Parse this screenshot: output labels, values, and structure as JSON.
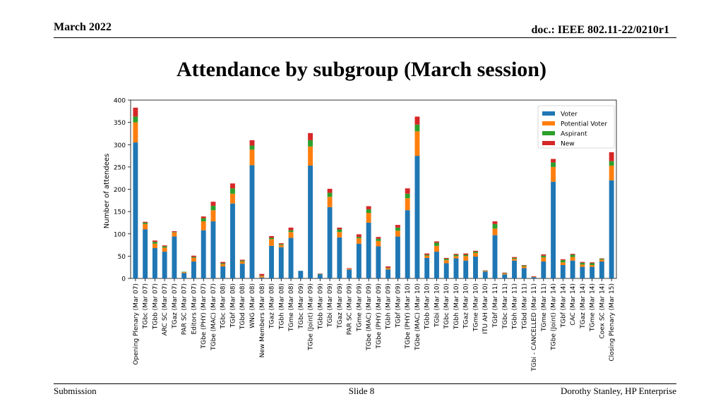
{
  "header": {
    "date": "March 2022",
    "doc": "doc.: IEEE 802.11-22/0210r1"
  },
  "title": "Attendance by subgroup (March session)",
  "footer": {
    "left": "Submission",
    "center": "Slide 8",
    "right": "Dorothy Stanley, HP Enterprise"
  },
  "colors": {
    "Voter": "#1f77b4",
    "Potential Voter": "#ff7f0e",
    "Aspirant": "#2ca02c",
    "New": "#d62728"
  },
  "chart_data": {
    "type": "bar",
    "stacked": true,
    "title": "",
    "xlabel": "",
    "ylabel": "Number of attendees",
    "ylim": [
      0,
      400
    ],
    "yticks": [
      0,
      50,
      100,
      150,
      200,
      250,
      300,
      350,
      400
    ],
    "legend_position": "top-right",
    "categories": [
      "Opening Plenary (Mar 07)",
      "TGbc (Mar 07)",
      "TGbb (Mar 07)",
      "ARC SC (Mar 07)",
      "TGaz (Mar 07)",
      "PAR SC (Mar 07)",
      "Editors (Mar 07)",
      "TGbe (PHY) (Mar 07)",
      "TGbe (MAC) (Mar 07)",
      "TGbc (Mar 08)",
      "TGbf (Mar 08)",
      "TGbd (Mar 08)",
      "WNG (Mar 08)",
      "New Members (Mar 08)",
      "TGaz (Mar 08)",
      "TGbh (Mar 08)",
      "TGme (Mar 08)",
      "TGbc (Mar 09)",
      "TGbe (Joint) (Mar 09)",
      "TGbb (Mar 09)",
      "TGbi (Mar 09)",
      "TGaz (Mar 09)",
      "PAR SC (Mar 09)",
      "TGme (Mar 09)",
      "TGbe (MAC) (Mar 09)",
      "TGbe (PHY) (Mar 09)",
      "TGbh (Mar 09)",
      "TGbf (Mar 09)",
      "TGbe (PHY) (Mar 10)",
      "TGbe (MAC) (Mar 10)",
      "TGbb (Mar 10)",
      "TGbi (Mar 10)",
      "TGbc (Mar 10)",
      "TGbh (Mar 10)",
      "TGaz (Mar 10)",
      "TGme (Mar 10)",
      "ITU AH (Mar 10)",
      "TGbf (Mar 11)",
      "TGbc (Mar 11)",
      "TGbh (Mar 11)",
      "TGbd (Mar 11)",
      "TGbi - CANCELLED (Mar 11)",
      "TGme (Mar 11)",
      "TGbe (Joint) (Mar 14)",
      "TGbf (Mar 14)",
      "CAC (Mar 14)",
      "TGaz (Mar 14)",
      "TGme (Mar 14)",
      "Coex SC (Mar 14)",
      "Closing Plenary (Mar 15)"
    ],
    "series": [
      {
        "name": "Voter",
        "values": [
          305,
          110,
          68,
          60,
          94,
          12,
          38,
          108,
          128,
          27,
          168,
          33,
          254,
          2,
          73,
          70,
          91,
          17,
          253,
          9,
          160,
          92,
          20,
          78,
          125,
          72,
          20,
          94,
          153,
          275,
          46,
          60,
          34,
          45,
          40,
          49,
          15,
          97,
          9,
          40,
          23,
          3,
          38,
          217,
          30,
          40,
          26,
          26,
          38,
          220
        ]
      },
      {
        "name": "Potential Voter",
        "values": [
          45,
          12,
          10,
          9,
          9,
          2,
          8,
          20,
          25,
          5,
          22,
          5,
          35,
          3,
          15,
          5,
          13,
          0,
          43,
          0,
          23,
          12,
          2,
          12,
          22,
          12,
          3,
          13,
          27,
          55,
          5,
          13,
          7,
          5,
          10,
          8,
          1,
          15,
          2,
          4,
          4,
          1,
          9,
          33,
          6,
          8,
          5,
          4,
          4,
          33
        ]
      },
      {
        "name": "Aspirant",
        "values": [
          13,
          3,
          4,
          3,
          1,
          1,
          2,
          7,
          10,
          2,
          12,
          2,
          9,
          1,
          3,
          2,
          4,
          0,
          14,
          1,
          9,
          6,
          0,
          3,
          8,
          5,
          1,
          7,
          10,
          15,
          2,
          7,
          3,
          3,
          3,
          3,
          1,
          10,
          1,
          2,
          2,
          0,
          4,
          10,
          5,
          5,
          4,
          4,
          2,
          10
        ]
      },
      {
        "name": "New",
        "values": [
          20,
          2,
          3,
          2,
          2,
          0,
          3,
          4,
          9,
          3,
          11,
          2,
          12,
          4,
          4,
          2,
          6,
          0,
          16,
          1,
          9,
          4,
          1,
          6,
          7,
          4,
          3,
          6,
          12,
          18,
          3,
          3,
          2,
          2,
          3,
          2,
          1,
          6,
          1,
          2,
          1,
          1,
          3,
          8,
          2,
          2,
          2,
          2,
          1,
          20
        ]
      }
    ]
  }
}
